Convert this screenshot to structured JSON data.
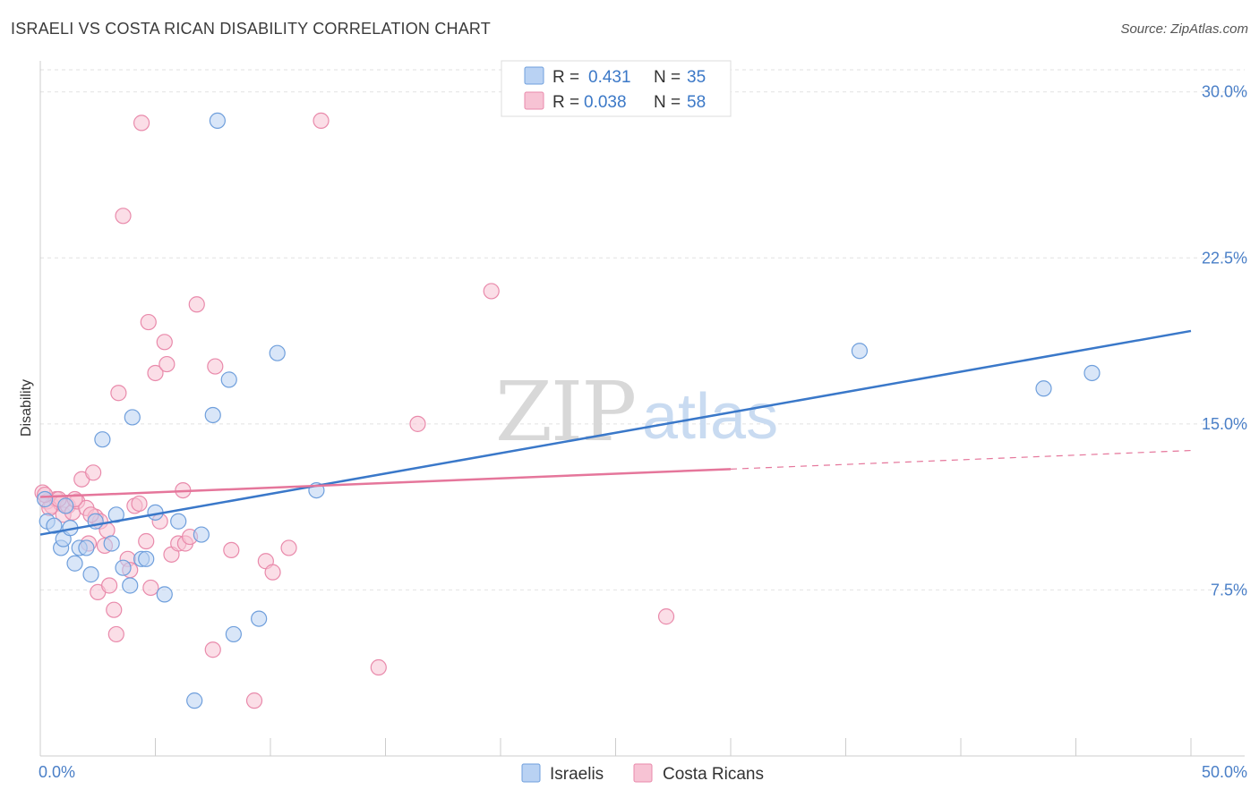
{
  "title": "ISRAELI VS COSTA RICAN DISABILITY CORRELATION CHART",
  "source": "Source: ZipAtlas.com",
  "watermark": {
    "zip": "ZIP",
    "atlas": "atlas"
  },
  "colors": {
    "blue_fill": "#b9d2f3",
    "blue_stroke": "#6f9fdc",
    "blue_line": "#3a78c9",
    "pink_fill": "#f7c3d4",
    "pink_stroke": "#e98aab",
    "pink_line": "#e5769b",
    "tick_text": "#4a7fc7",
    "grid": "#e2e2e2"
  },
  "legend": {
    "rows": [
      {
        "r_label": "R =",
        "r_value": "0.431",
        "n_label": "N =",
        "n_value": "35",
        "series": "Israelis"
      },
      {
        "r_label": "R =",
        "r_value": "0.038",
        "n_label": "N =",
        "n_value": "58",
        "series": "Costa Ricans"
      }
    ]
  },
  "chart_data": {
    "type": "scatter",
    "title": "ISRAELI VS COSTA RICAN DISABILITY CORRELATION CHART",
    "xlabel": "",
    "ylabel": "Disability",
    "xlim": [
      0,
      50
    ],
    "ylim": [
      0,
      31
    ],
    "x_tick_labels": [
      {
        "value": 0,
        "label": "0.0%"
      },
      {
        "value": 50,
        "label": "50.0%"
      }
    ],
    "y_tick_labels": [
      {
        "value": 7.5,
        "label": "7.5%"
      },
      {
        "value": 15,
        "label": "15.0%"
      },
      {
        "value": 22.5,
        "label": "22.5%"
      },
      {
        "value": 30,
        "label": "30.0%"
      }
    ],
    "grid": true,
    "legend_position": "top-center",
    "series": [
      {
        "name": "Israelis",
        "color": "#6f9fdc",
        "trend": {
          "x0": 0,
          "y0": 10.0,
          "x1": 50,
          "y1": 19.2,
          "dashed_from": null
        },
        "points": [
          [
            0.3,
            10.6
          ],
          [
            0.6,
            10.4
          ],
          [
            0.9,
            9.4
          ],
          [
            1.0,
            9.8
          ],
          [
            1.3,
            10.3
          ],
          [
            1.5,
            8.7
          ],
          [
            1.7,
            9.4
          ],
          [
            2.0,
            9.4
          ],
          [
            2.2,
            8.2
          ],
          [
            2.4,
            10.6
          ],
          [
            2.7,
            14.3
          ],
          [
            3.1,
            9.6
          ],
          [
            3.3,
            10.9
          ],
          [
            3.6,
            8.5
          ],
          [
            3.9,
            7.7
          ],
          [
            4.0,
            15.3
          ],
          [
            4.4,
            8.9
          ],
          [
            4.6,
            8.9
          ],
          [
            5.0,
            11.0
          ],
          [
            5.4,
            7.3
          ],
          [
            6.0,
            10.6
          ],
          [
            6.7,
            2.5
          ],
          [
            7.0,
            10.0
          ],
          [
            7.5,
            15.4
          ],
          [
            7.7,
            28.7
          ],
          [
            8.2,
            17.0
          ],
          [
            8.4,
            5.5
          ],
          [
            9.5,
            6.2
          ],
          [
            10.3,
            18.2
          ],
          [
            12.0,
            12.0
          ],
          [
            35.6,
            18.3
          ],
          [
            43.6,
            16.6
          ],
          [
            45.7,
            17.3
          ],
          [
            0.2,
            11.6
          ],
          [
            1.1,
            11.3
          ]
        ]
      },
      {
        "name": "Costa Ricans",
        "color": "#e98aab",
        "trend": {
          "x0": 0,
          "y0": 11.7,
          "x1": 50,
          "y1": 13.8,
          "dashed_from": 30
        },
        "points": [
          [
            0.1,
            11.9
          ],
          [
            0.3,
            11.5
          ],
          [
            0.5,
            11.3
          ],
          [
            0.7,
            11.6
          ],
          [
            0.9,
            11.4
          ],
          [
            1.0,
            10.9
          ],
          [
            1.2,
            11.3
          ],
          [
            1.4,
            11.0
          ],
          [
            1.6,
            11.5
          ],
          [
            1.8,
            12.5
          ],
          [
            2.0,
            11.2
          ],
          [
            2.1,
            9.6
          ],
          [
            2.3,
            12.8
          ],
          [
            2.4,
            10.8
          ],
          [
            2.5,
            7.4
          ],
          [
            2.6,
            10.6
          ],
          [
            2.8,
            9.5
          ],
          [
            2.9,
            10.2
          ],
          [
            3.0,
            7.7
          ],
          [
            3.2,
            6.6
          ],
          [
            3.3,
            5.5
          ],
          [
            3.4,
            16.4
          ],
          [
            3.6,
            24.4
          ],
          [
            3.8,
            8.9
          ],
          [
            3.9,
            8.4
          ],
          [
            4.1,
            11.3
          ],
          [
            4.3,
            11.4
          ],
          [
            4.4,
            28.6
          ],
          [
            4.6,
            9.7
          ],
          [
            4.7,
            19.6
          ],
          [
            4.8,
            7.6
          ],
          [
            5.0,
            17.3
          ],
          [
            5.2,
            10.6
          ],
          [
            5.4,
            18.7
          ],
          [
            5.5,
            17.7
          ],
          [
            5.7,
            9.1
          ],
          [
            6.0,
            9.6
          ],
          [
            6.2,
            12.0
          ],
          [
            6.3,
            9.6
          ],
          [
            6.5,
            9.9
          ],
          [
            6.8,
            20.4
          ],
          [
            7.5,
            4.8
          ],
          [
            7.6,
            17.6
          ],
          [
            8.3,
            9.3
          ],
          [
            9.3,
            2.5
          ],
          [
            9.8,
            8.8
          ],
          [
            10.1,
            8.3
          ],
          [
            10.8,
            9.4
          ],
          [
            12.2,
            28.7
          ],
          [
            14.7,
            4.0
          ],
          [
            16.4,
            15.0
          ],
          [
            19.6,
            21.0
          ],
          [
            27.2,
            6.3
          ],
          [
            0.4,
            11.2
          ],
          [
            0.8,
            11.6
          ],
          [
            1.5,
            11.6
          ],
          [
            2.2,
            10.9
          ],
          [
            0.2,
            11.8
          ]
        ]
      }
    ]
  },
  "bottom_legend": [
    {
      "label": "Israelis"
    },
    {
      "label": "Costa Ricans"
    }
  ]
}
